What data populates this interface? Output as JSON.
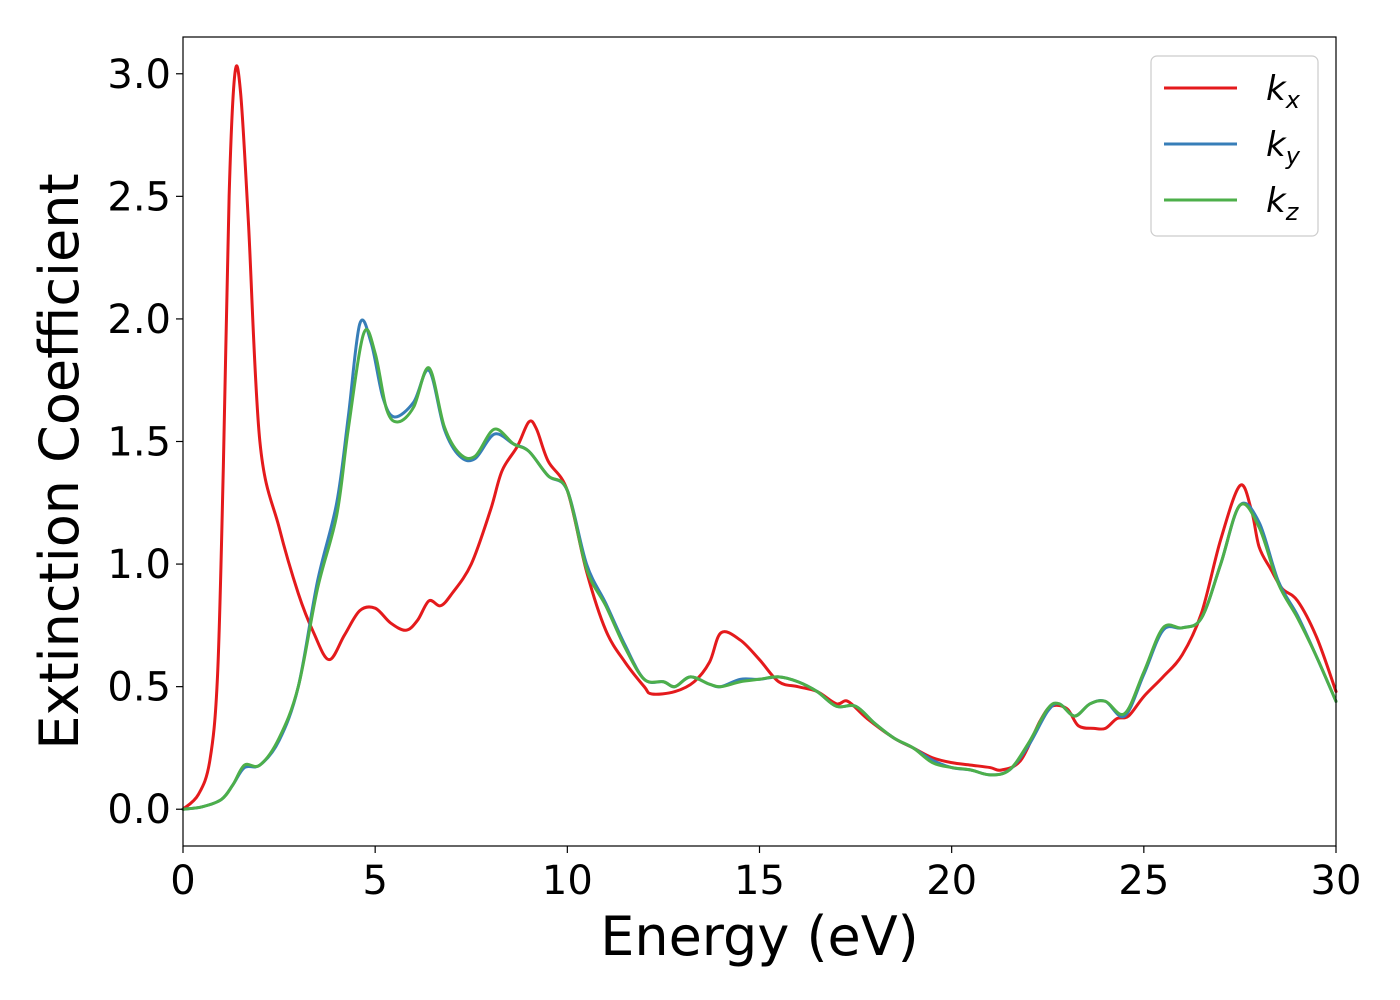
{
  "chart_data": {
    "type": "line",
    "xlabel": "Energy (eV)",
    "ylabel": "Extinction Coefficient",
    "xlim": [
      0,
      30
    ],
    "ylim": [
      -0.15,
      3.15
    ],
    "xticks": [
      0,
      5,
      10,
      15,
      20,
      25,
      30
    ],
    "yticks": [
      0.0,
      0.5,
      1.0,
      1.5,
      2.0,
      2.5,
      3.0
    ],
    "xtick_labels": [
      "0",
      "5",
      "10",
      "15",
      "20",
      "25",
      "30"
    ],
    "ytick_labels": [
      "0.0",
      "0.5",
      "1.0",
      "1.5",
      "2.0",
      "2.5",
      "3.0"
    ],
    "grid": false,
    "legend_position": "top-right",
    "series": [
      {
        "name": "k_x",
        "label_main": "k",
        "label_sub": "x",
        "color": "#e41a1c",
        "points": [
          [
            0,
            0.0
          ],
          [
            0.4,
            0.06
          ],
          [
            0.7,
            0.2
          ],
          [
            0.9,
            0.55
          ],
          [
            1.05,
            1.4
          ],
          [
            1.2,
            2.5
          ],
          [
            1.35,
            3.0
          ],
          [
            1.5,
            2.92
          ],
          [
            1.7,
            2.4
          ],
          [
            2.0,
            1.5
          ],
          [
            2.5,
            1.15
          ],
          [
            3.0,
            0.88
          ],
          [
            3.4,
            0.72
          ],
          [
            3.8,
            0.61
          ],
          [
            4.2,
            0.71
          ],
          [
            4.6,
            0.81
          ],
          [
            5.0,
            0.82
          ],
          [
            5.4,
            0.76
          ],
          [
            5.8,
            0.73
          ],
          [
            6.1,
            0.77
          ],
          [
            6.4,
            0.85
          ],
          [
            6.7,
            0.83
          ],
          [
            7.0,
            0.88
          ],
          [
            7.5,
            1.0
          ],
          [
            8.0,
            1.22
          ],
          [
            8.3,
            1.38
          ],
          [
            8.7,
            1.48
          ],
          [
            9.0,
            1.58
          ],
          [
            9.2,
            1.55
          ],
          [
            9.5,
            1.42
          ],
          [
            10.0,
            1.3
          ],
          [
            10.5,
            0.97
          ],
          [
            11.0,
            0.73
          ],
          [
            11.5,
            0.6
          ],
          [
            12.0,
            0.5
          ],
          [
            12.2,
            0.47
          ],
          [
            12.8,
            0.48
          ],
          [
            13.3,
            0.52
          ],
          [
            13.7,
            0.6
          ],
          [
            14.0,
            0.72
          ],
          [
            14.5,
            0.69
          ],
          [
            15.0,
            0.61
          ],
          [
            15.5,
            0.52
          ],
          [
            16.0,
            0.5
          ],
          [
            16.5,
            0.48
          ],
          [
            17.0,
            0.43
          ],
          [
            17.3,
            0.44
          ],
          [
            17.8,
            0.37
          ],
          [
            18.5,
            0.29
          ],
          [
            19.0,
            0.25
          ],
          [
            19.5,
            0.21
          ],
          [
            20.0,
            0.19
          ],
          [
            20.5,
            0.18
          ],
          [
            21.0,
            0.17
          ],
          [
            21.3,
            0.16
          ],
          [
            21.8,
            0.2
          ],
          [
            22.3,
            0.36
          ],
          [
            22.6,
            0.42
          ],
          [
            23.0,
            0.41
          ],
          [
            23.3,
            0.34
          ],
          [
            23.7,
            0.33
          ],
          [
            24.0,
            0.33
          ],
          [
            24.3,
            0.37
          ],
          [
            24.6,
            0.38
          ],
          [
            25.0,
            0.46
          ],
          [
            25.5,
            0.54
          ],
          [
            26.0,
            0.63
          ],
          [
            26.5,
            0.8
          ],
          [
            27.0,
            1.1
          ],
          [
            27.5,
            1.32
          ],
          [
            27.8,
            1.22
          ],
          [
            28.0,
            1.07
          ],
          [
            28.3,
            0.98
          ],
          [
            28.6,
            0.9
          ],
          [
            29.0,
            0.85
          ],
          [
            29.5,
            0.7
          ],
          [
            30.0,
            0.48
          ]
        ]
      },
      {
        "name": "k_y",
        "label_main": "k",
        "label_sub": "y",
        "color": "#377eb8",
        "points": [
          [
            0,
            0.0
          ],
          [
            0.5,
            0.01
          ],
          [
            1.0,
            0.04
          ],
          [
            1.3,
            0.1
          ],
          [
            1.6,
            0.17
          ],
          [
            2.0,
            0.18
          ],
          [
            2.5,
            0.28
          ],
          [
            3.0,
            0.5
          ],
          [
            3.5,
            0.93
          ],
          [
            4.0,
            1.25
          ],
          [
            4.3,
            1.6
          ],
          [
            4.6,
            1.98
          ],
          [
            4.9,
            1.9
          ],
          [
            5.2,
            1.68
          ],
          [
            5.5,
            1.6
          ],
          [
            6.0,
            1.66
          ],
          [
            6.4,
            1.79
          ],
          [
            6.8,
            1.55
          ],
          [
            7.2,
            1.44
          ],
          [
            7.6,
            1.43
          ],
          [
            8.1,
            1.53
          ],
          [
            8.6,
            1.49
          ],
          [
            9.0,
            1.46
          ],
          [
            9.5,
            1.36
          ],
          [
            10.0,
            1.3
          ],
          [
            10.5,
            1.0
          ],
          [
            11.0,
            0.84
          ],
          [
            11.5,
            0.67
          ],
          [
            12.0,
            0.53
          ],
          [
            12.5,
            0.52
          ],
          [
            12.8,
            0.5
          ],
          [
            13.2,
            0.54
          ],
          [
            13.7,
            0.51
          ],
          [
            14.0,
            0.5
          ],
          [
            14.5,
            0.53
          ],
          [
            15.0,
            0.53
          ],
          [
            15.5,
            0.54
          ],
          [
            16.0,
            0.52
          ],
          [
            16.5,
            0.48
          ],
          [
            17.0,
            0.42
          ],
          [
            17.5,
            0.42
          ],
          [
            18.0,
            0.35
          ],
          [
            18.5,
            0.29
          ],
          [
            19.0,
            0.25
          ],
          [
            19.5,
            0.2
          ],
          [
            20.0,
            0.17
          ],
          [
            20.5,
            0.16
          ],
          [
            21.0,
            0.14
          ],
          [
            21.5,
            0.16
          ],
          [
            22.0,
            0.26
          ],
          [
            22.5,
            0.4
          ],
          [
            22.8,
            0.43
          ],
          [
            23.2,
            0.38
          ],
          [
            23.6,
            0.43
          ],
          [
            24.0,
            0.44
          ],
          [
            24.5,
            0.38
          ],
          [
            25.0,
            0.55
          ],
          [
            25.5,
            0.73
          ],
          [
            26.0,
            0.74
          ],
          [
            26.5,
            0.78
          ],
          [
            27.0,
            1.0
          ],
          [
            27.5,
            1.24
          ],
          [
            28.0,
            1.17
          ],
          [
            28.5,
            0.93
          ],
          [
            29.0,
            0.79
          ],
          [
            29.5,
            0.62
          ],
          [
            30.0,
            0.44
          ]
        ]
      },
      {
        "name": "k_z",
        "label_main": "k",
        "label_sub": "z",
        "color": "#4daf4a",
        "points": [
          [
            0,
            0.0
          ],
          [
            0.5,
            0.01
          ],
          [
            1.0,
            0.04
          ],
          [
            1.3,
            0.1
          ],
          [
            1.6,
            0.18
          ],
          [
            2.0,
            0.18
          ],
          [
            2.5,
            0.29
          ],
          [
            3.0,
            0.5
          ],
          [
            3.5,
            0.9
          ],
          [
            4.0,
            1.2
          ],
          [
            4.3,
            1.55
          ],
          [
            4.7,
            1.94
          ],
          [
            5.0,
            1.86
          ],
          [
            5.3,
            1.63
          ],
          [
            5.6,
            1.58
          ],
          [
            6.0,
            1.64
          ],
          [
            6.4,
            1.8
          ],
          [
            6.8,
            1.56
          ],
          [
            7.2,
            1.45
          ],
          [
            7.6,
            1.44
          ],
          [
            8.1,
            1.55
          ],
          [
            8.6,
            1.49
          ],
          [
            9.0,
            1.46
          ],
          [
            9.5,
            1.36
          ],
          [
            10.0,
            1.3
          ],
          [
            10.5,
            0.98
          ],
          [
            11.0,
            0.83
          ],
          [
            11.5,
            0.66
          ],
          [
            12.0,
            0.53
          ],
          [
            12.5,
            0.52
          ],
          [
            12.8,
            0.5
          ],
          [
            13.2,
            0.54
          ],
          [
            13.7,
            0.51
          ],
          [
            14.0,
            0.5
          ],
          [
            14.5,
            0.52
          ],
          [
            15.0,
            0.53
          ],
          [
            15.5,
            0.54
          ],
          [
            16.0,
            0.52
          ],
          [
            16.5,
            0.48
          ],
          [
            17.0,
            0.42
          ],
          [
            17.5,
            0.42
          ],
          [
            18.0,
            0.35
          ],
          [
            18.5,
            0.29
          ],
          [
            19.0,
            0.25
          ],
          [
            19.5,
            0.19
          ],
          [
            20.0,
            0.17
          ],
          [
            20.5,
            0.16
          ],
          [
            21.0,
            0.14
          ],
          [
            21.5,
            0.16
          ],
          [
            22.0,
            0.27
          ],
          [
            22.5,
            0.41
          ],
          [
            22.8,
            0.43
          ],
          [
            23.2,
            0.38
          ],
          [
            23.6,
            0.43
          ],
          [
            24.0,
            0.44
          ],
          [
            24.5,
            0.39
          ],
          [
            25.0,
            0.56
          ],
          [
            25.5,
            0.74
          ],
          [
            26.0,
            0.74
          ],
          [
            26.5,
            0.78
          ],
          [
            27.0,
            1.0
          ],
          [
            27.5,
            1.24
          ],
          [
            28.0,
            1.15
          ],
          [
            28.5,
            0.92
          ],
          [
            29.0,
            0.78
          ],
          [
            29.5,
            0.62
          ],
          [
            30.0,
            0.44
          ]
        ]
      }
    ]
  }
}
